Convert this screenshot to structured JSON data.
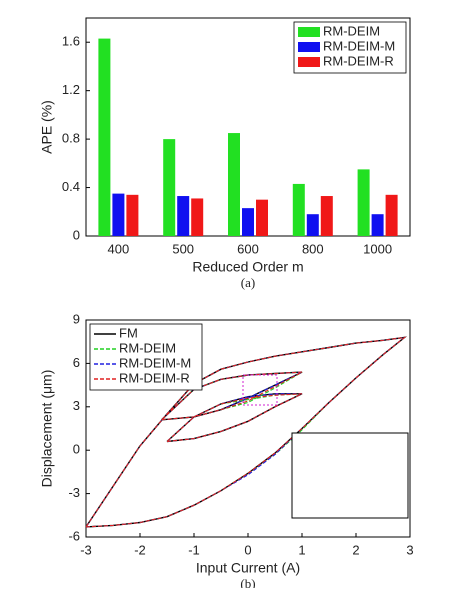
{
  "chart_data": [
    {
      "type": "bar",
      "caption": "(a)",
      "y_label": "APE (%)",
      "x_label": "Reduced Order m",
      "categories": [
        "400",
        "500",
        "600",
        "800",
        "1000"
      ],
      "series": [
        {
          "name": "RM-DEIM",
          "color": "#22e022",
          "values": [
            1.63,
            0.8,
            0.85,
            0.43,
            0.55
          ]
        },
        {
          "name": "RM-DEIM-M",
          "color": "#1010f0",
          "values": [
            0.35,
            0.33,
            0.23,
            0.18,
            0.18
          ]
        },
        {
          "name": "RM-DEIM-R",
          "color": "#f01818",
          "values": [
            0.34,
            0.31,
            0.3,
            0.33,
            0.34
          ]
        }
      ],
      "ylim": [
        0,
        1.8
      ],
      "yticks": [
        0,
        0.4,
        0.8,
        1.2,
        1.6
      ],
      "legend": "upper right"
    },
    {
      "type": "line",
      "caption": "(b)",
      "y_label": "Displacement (μm)",
      "x_label": "Input Current (A)",
      "x": [
        -3,
        -2.5,
        -2,
        -1.5,
        -1,
        -0.5,
        0,
        0.5,
        1,
        1.5,
        2,
        2.5,
        2.9,
        2.5,
        2,
        1.5,
        1,
        0.5,
        0,
        -0.5,
        -1,
        -1.5,
        -2,
        -2.5,
        -3,
        null,
        -1.6,
        -1,
        -0.5,
        0,
        0.5,
        1,
        0.5,
        0,
        -0.5,
        -1,
        -1.6,
        null,
        -1.5,
        -1,
        -0.5,
        0,
        0.5,
        1,
        0.5,
        0,
        -0.5,
        -1,
        -1.5
      ],
      "series": [
        {
          "name": "FM",
          "color": "#000000",
          "style": "solid",
          "values": [
            -5.3,
            -5.2,
            -5.0,
            -4.6,
            -3.8,
            -2.8,
            -1.6,
            -0.2,
            1.5,
            3.3,
            5.0,
            6.6,
            7.8,
            7.6,
            7.4,
            7.1,
            6.8,
            6.5,
            6.1,
            5.6,
            4.6,
            2.5,
            0.3,
            -2.5,
            -5.3,
            null,
            2.1,
            2.3,
            2.8,
            3.6,
            4.5,
            5.4,
            5.3,
            5.2,
            4.9,
            4.2,
            2.1,
            null,
            0.6,
            0.8,
            1.3,
            2.0,
            3.0,
            3.9,
            3.9,
            3.7,
            3.2,
            2.3,
            0.6
          ]
        },
        {
          "name": "RM-DEIM",
          "color": "#22d022",
          "style": "dashed",
          "values": [
            -5.3,
            -5.2,
            -5.0,
            -4.6,
            -3.8,
            -2.8,
            -1.6,
            -0.3,
            1.4,
            3.3,
            5.0,
            6.6,
            7.8,
            7.6,
            7.4,
            7.1,
            6.8,
            6.5,
            6.1,
            5.6,
            4.6,
            2.5,
            0.3,
            -2.5,
            -5.3,
            null,
            2.1,
            2.3,
            2.8,
            3.3,
            4.3,
            5.4,
            5.3,
            5.2,
            4.9,
            4.2,
            2.1,
            null,
            0.6,
            0.8,
            1.3,
            2.0,
            3.0,
            3.9,
            3.8,
            3.5,
            3.2,
            2.3,
            0.6
          ]
        },
        {
          "name": "RM-DEIM-M",
          "color": "#2020e0",
          "style": "dashed",
          "values": [
            -5.3,
            -5.2,
            -5.0,
            -4.6,
            -3.8,
            -2.8,
            -1.7,
            -0.3,
            1.5,
            3.3,
            5.0,
            6.6,
            7.8,
            7.6,
            7.4,
            7.1,
            6.8,
            6.5,
            6.1,
            5.6,
            4.6,
            2.5,
            0.3,
            -2.5,
            -5.3,
            null,
            2.1,
            2.3,
            2.8,
            3.6,
            4.5,
            5.4,
            5.3,
            5.2,
            4.9,
            4.2,
            2.1,
            null,
            0.6,
            0.8,
            1.3,
            2.0,
            3.0,
            3.9,
            3.9,
            3.7,
            3.2,
            2.3,
            0.6
          ]
        },
        {
          "name": "RM-DEIM-R",
          "color": "#e02020",
          "style": "dashed",
          "values": [
            -5.3,
            -5.2,
            -5.0,
            -4.6,
            -3.8,
            -2.8,
            -1.6,
            -0.2,
            1.5,
            3.3,
            5.0,
            6.6,
            7.8,
            7.6,
            7.4,
            7.1,
            6.8,
            6.5,
            6.1,
            5.6,
            4.6,
            2.5,
            0.3,
            -2.5,
            -5.3,
            null,
            2.1,
            2.3,
            2.8,
            3.4,
            4.4,
            5.4,
            5.3,
            5.2,
            4.9,
            4.2,
            2.1,
            null,
            0.6,
            0.8,
            1.3,
            2.0,
            3.0,
            3.9,
            3.8,
            3.6,
            3.2,
            2.3,
            0.6
          ]
        }
      ],
      "xlim": [
        -3,
        3
      ],
      "xticks": [
        -3,
        -2,
        -1,
        0,
        1,
        2,
        3
      ],
      "ylim": [
        -6,
        9
      ],
      "yticks": [
        -6,
        -3,
        0,
        3,
        6,
        9
      ],
      "legend": "upper left"
    }
  ]
}
